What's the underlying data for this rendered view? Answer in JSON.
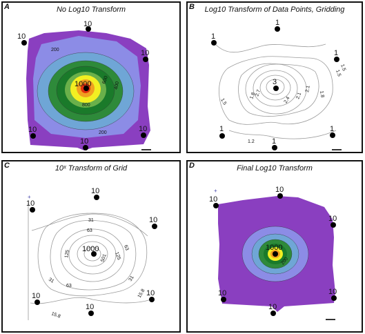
{
  "panels": [
    {
      "letter": "A",
      "title": "No Log10 Transform",
      "center_label": "1000",
      "point_label": "10",
      "contour_labels": [
        "200",
        "400",
        "600",
        "800",
        "200"
      ]
    },
    {
      "letter": "B",
      "title": "Log10 Transform of Data Points, Gridding",
      "center_label": "3",
      "point_label": "1",
      "contour_labels": [
        "1.5",
        "1.8",
        "2.1",
        "2.4",
        "2.7",
        "1.5",
        "1.8",
        "2.1",
        "1.2",
        "1.5"
      ]
    },
    {
      "letter": "C",
      "title": "10ˣ Transform of Grid",
      "center_label": "1000",
      "point_label": "10",
      "contour_labels": [
        "31",
        "63",
        "125",
        "501",
        "125",
        "63",
        "31",
        "15.8",
        "15.8",
        "31",
        "63"
      ]
    },
    {
      "letter": "D",
      "title": "Final Log10 Transform",
      "center_label": "1000",
      "point_label": "10",
      "contour_labels": [
        "200"
      ]
    }
  ],
  "colors": {
    "purple": "#8a3fc0",
    "lavender": "#8c8ce6",
    "steel": "#6fa6d6",
    "lightgreen": "#4aa84a",
    "darkgreen": "#1a7a2a",
    "yellow": "#f2ef22",
    "orange": "#f0a020",
    "red": "#e03010",
    "line": "#9a9a9a"
  }
}
